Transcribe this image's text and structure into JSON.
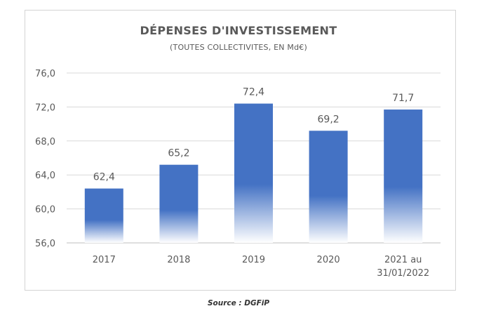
{
  "chart_data": {
    "type": "bar",
    "title": "DÉPENSES D'INVESTISSEMENT",
    "subtitle": "(TOUTES COLLECTIVITES, EN Md€)",
    "categories": [
      [
        "2017"
      ],
      [
        "2018"
      ],
      [
        "2019"
      ],
      [
        "2020"
      ],
      [
        "2021 au",
        "31/01/2022"
      ]
    ],
    "values": [
      62.4,
      65.2,
      72.4,
      69.2,
      71.7
    ],
    "value_labels": [
      "62,4",
      "65,2",
      "72,4",
      "69,2",
      "71,7"
    ],
    "ylim": [
      56,
      76
    ],
    "yticks": [
      56,
      60,
      64,
      68,
      72,
      76
    ],
    "ytick_labels": [
      "56,0",
      "60,0",
      "64,0",
      "68,0",
      "72,0",
      "76,0"
    ],
    "xlabel": "",
    "ylabel": "",
    "grid": true,
    "legend": "none",
    "bar_color": "#4472c4",
    "bar_fade_color": "#ffffff"
  },
  "source": "Source : DGFiP"
}
